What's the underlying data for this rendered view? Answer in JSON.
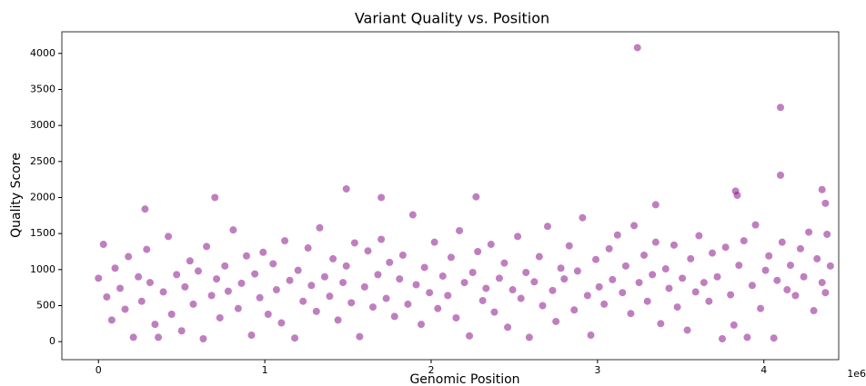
{
  "chart_data": {
    "type": "scatter",
    "title": "Variant Quality vs. Position",
    "xlabel": "Genomic Position",
    "ylabel": "Quality Score",
    "x_offset_label": "1e6",
    "color": "#800080",
    "alpha": 0.5,
    "xlim": [
      -0.22,
      4.45
    ],
    "xticks": [
      0,
      1,
      2,
      3,
      4
    ],
    "ylim": [
      -250,
      4300
    ],
    "yticks": [
      0,
      500,
      1000,
      1500,
      2000,
      2500,
      3000,
      3500,
      4000
    ],
    "x": [
      0.0,
      0.03,
      0.05,
      0.08,
      0.1,
      0.13,
      0.16,
      0.18,
      0.21,
      0.24,
      0.26,
      0.29,
      0.31,
      0.34,
      0.36,
      0.39,
      0.42,
      0.44,
      0.47,
      0.5,
      0.52,
      0.55,
      0.57,
      0.6,
      0.63,
      0.65,
      0.68,
      0.71,
      0.73,
      0.76,
      0.78,
      0.81,
      0.84,
      0.86,
      0.89,
      0.92,
      0.94,
      0.97,
      0.99,
      1.02,
      1.05,
      1.07,
      1.1,
      1.12,
      1.15,
      1.18,
      1.2,
      1.23,
      1.26,
      1.28,
      1.31,
      1.33,
      1.36,
      1.39,
      1.41,
      1.44,
      1.47,
      1.49,
      1.52,
      1.54,
      1.57,
      1.6,
      1.62,
      1.65,
      1.68,
      1.7,
      1.73,
      1.75,
      1.78,
      1.81,
      1.83,
      1.86,
      1.89,
      1.91,
      1.94,
      1.96,
      1.99,
      2.02,
      2.04,
      2.07,
      2.1,
      2.12,
      2.15,
      2.17,
      2.2,
      2.23,
      2.25,
      2.28,
      2.31,
      2.33,
      2.36,
      2.38,
      2.41,
      2.44,
      2.46,
      2.49,
      2.52,
      2.54,
      2.57,
      2.59,
      2.62,
      2.65,
      2.67,
      2.7,
      2.73,
      2.75,
      2.78,
      2.8,
      2.83,
      2.86,
      2.88,
      2.91,
      2.94,
      2.96,
      2.99,
      3.01,
      3.04,
      3.07,
      3.09,
      3.12,
      3.15,
      3.17,
      3.2,
      3.22,
      3.25,
      3.28,
      3.3,
      3.33,
      3.35,
      3.38,
      3.41,
      3.43,
      3.46,
      3.48,
      3.51,
      3.54,
      3.56,
      3.59,
      3.61,
      3.64,
      3.67,
      3.69,
      3.72,
      3.75,
      3.77,
      3.8,
      3.82,
      3.85,
      3.88,
      3.9,
      3.93,
      3.95,
      3.98,
      4.01,
      4.03,
      4.06,
      4.08,
      4.11,
      4.14,
      4.16,
      4.19,
      4.22,
      4.24,
      4.27,
      4.3,
      4.32,
      4.35,
      4.38,
      4.4,
      4.37,
      3.24,
      4.1,
      4.1,
      1.49,
      0.7,
      1.7,
      2.27,
      3.83,
      3.84,
      4.35,
      4.37,
      0.28,
      3.35
    ],
    "values": [
      880,
      1350,
      620,
      300,
      1020,
      740,
      450,
      1180,
      60,
      900,
      560,
      1280,
      820,
      240,
      60,
      690,
      1460,
      380,
      930,
      150,
      760,
      1120,
      520,
      980,
      40,
      1320,
      640,
      870,
      330,
      1050,
      700,
      1550,
      460,
      810,
      1190,
      90,
      940,
      610,
      1240,
      380,
      1080,
      720,
      260,
      1400,
      850,
      50,
      990,
      560,
      1300,
      780,
      420,
      1580,
      900,
      630,
      1150,
      300,
      820,
      1050,
      540,
      1370,
      70,
      760,
      1260,
      480,
      930,
      1420,
      600,
      1100,
      350,
      870,
      1200,
      520,
      1760,
      790,
      240,
      1030,
      680,
      1380,
      460,
      910,
      640,
      1170,
      330,
      1540,
      820,
      80,
      960,
      1250,
      570,
      740,
      1350,
      410,
      880,
      1090,
      200,
      720,
      1460,
      600,
      960,
      60,
      830,
      1180,
      500,
      1600,
      710,
      280,
      1020,
      870,
      1330,
      440,
      980,
      1720,
      640,
      90,
      1140,
      760,
      520,
      1290,
      860,
      1480,
      680,
      1050,
      390,
      1610,
      820,
      1200,
      560,
      930,
      1380,
      250,
      1010,
      740,
      1340,
      480,
      880,
      160,
      1150,
      690,
      1470,
      820,
      560,
      1230,
      900,
      40,
      1310,
      650,
      230,
      1060,
      1400,
      60,
      780,
      1620,
      460,
      990,
      1190,
      50,
      850,
      1380,
      720,
      1060,
      640,
      1290,
      900,
      1520,
      430,
      1150,
      820,
      1490,
      1050,
      680,
      4080,
      3250,
      2310,
      2120,
      2000,
      2000,
      2010,
      2090,
      2030,
      2110,
      1920,
      1840,
      1900
    ]
  }
}
